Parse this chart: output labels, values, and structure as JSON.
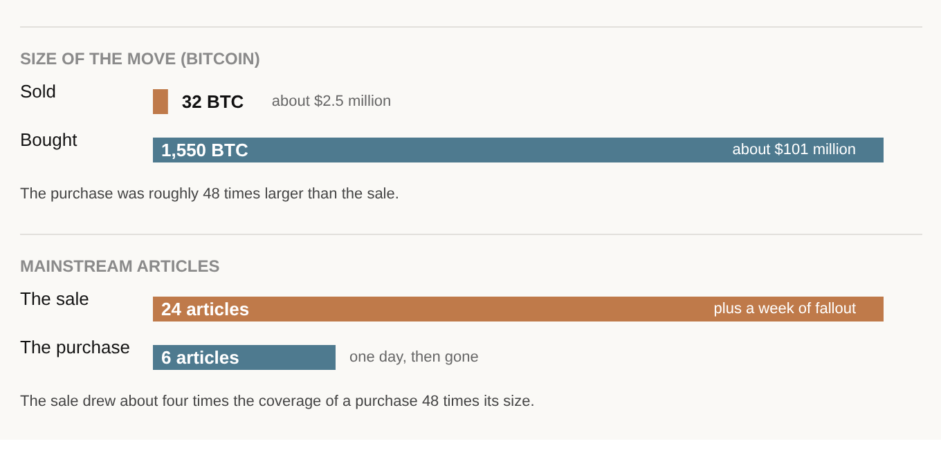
{
  "chart_data": [
    {
      "type": "bar",
      "orientation": "horizontal",
      "title": "SIZE OF THE MOVE (BITCOIN)",
      "categories": [
        "Sold",
        "Bought"
      ],
      "values": [
        32,
        1550
      ],
      "colors": [
        "#bf7a4a",
        "#4e7a8f"
      ],
      "value_labels": [
        "32 BTC",
        "1,550 BTC"
      ],
      "annotations": [
        "about $2.5 million",
        "about $101 million",
        "The purchase was roughly 48 times larger than the sale."
      ]
    },
    {
      "type": "bar",
      "orientation": "horizontal",
      "title": "MAINSTREAM ARTICLES",
      "categories": [
        "The sale",
        "The purchase"
      ],
      "values": [
        24,
        6
      ],
      "colors": [
        "#bf7a4a",
        "#4e7a8f"
      ],
      "value_labels": [
        "24 articles",
        "6 articles"
      ],
      "annotations": [
        "plus a week of fallout",
        "one day, then gone",
        "The sale drew about four times the coverage of a purchase 48 times its size."
      ]
    }
  ]
}
